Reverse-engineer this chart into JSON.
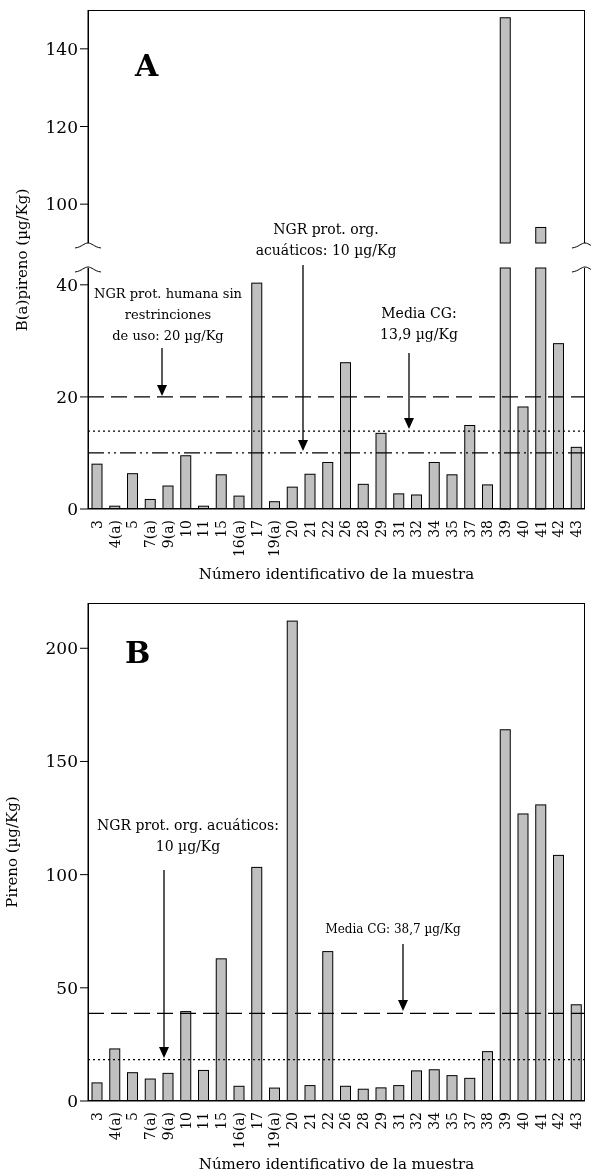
{
  "chart_data": [
    {
      "type": "bar",
      "title": "A",
      "categories": [
        null,
        null,
        null,
        null,
        null,
        null,
        null,
        null,
        null,
        null,
        null,
        null,
        null,
        null,
        null,
        null,
        null,
        null,
        null,
        null,
        null,
        null,
        null,
        null,
        null,
        null,
        null,
        null
      ],
      "values": [
        null,
        null,
        null,
        null,
        null,
        null,
        null,
        null,
        null,
        null,
        null,
        null,
        null,
        null,
        null,
        null,
        null,
        null,
        null,
        null,
        null,
        null,
        null,
        148,
        null,
        94,
        null,
        null
      ],
      "color": "#c0c0c0",
      "ylim": [
        90,
        150
      ],
      "yticks": [
        100,
        120,
        140
      ],
      "tick_labels": "y"
    },
    {
      "type": "bar",
      "ylabel": "B(a)pireno (µg/Kg)",
      "xlabel": "Número identificativo de la muestra",
      "categories": [
        "3",
        "4(a)",
        "5",
        "7(a)",
        "9(a)",
        "10",
        "11",
        "15",
        "16(a)",
        "17",
        "19(a)",
        "20",
        "21",
        "22",
        "26",
        "28",
        "29",
        "31",
        "32",
        "34",
        "35",
        "37",
        "38",
        "39",
        "40",
        "41",
        "42",
        "43"
      ],
      "values": [
        8.0,
        0.5,
        6.3,
        1.7,
        4.1,
        9.5,
        0.5,
        6.1,
        2.3,
        40.3,
        1.3,
        3.9,
        6.2,
        8.3,
        26.1,
        4.4,
        13.5,
        2.7,
        2.5,
        8.3,
        6.1,
        14.9,
        4.3,
        null,
        18.2,
        null,
        29.5,
        11.0
      ],
      "color": "#c0c0c0",
      "ylim": [
        0,
        43
      ],
      "yticks": [
        0,
        20,
        40
      ],
      "ref_lines": [
        {
          "axis": "y",
          "value": 20,
          "line_style": "dashed"
        },
        {
          "axis": "y",
          "value": 13.9,
          "line_style": "dotted"
        },
        {
          "axis": "y",
          "value": 10,
          "line_style": "dashdot"
        }
      ],
      "annotations": [
        "NGR prot. humana sin\nrestrinciones\nde uso: 20 µg/Kg",
        "Media CG:\n13,9 µg/Kg",
        "NGR prot. org.\nacuáticos: 10 µg/Kg"
      ]
    },
    {
      "type": "bar",
      "title": "B",
      "ylabel": "Pireno (µg/Kg)",
      "xlabel": "Número identificativo de la muestra",
      "categories": [
        "3",
        "4(a)",
        "5",
        "7(a)",
        "9(a)",
        "10",
        "11",
        "15",
        "16(a)",
        "17",
        "19(a)",
        "20",
        "21",
        "22",
        "26",
        "28",
        "29",
        "31",
        "32",
        "34",
        "35",
        "37",
        "38",
        "39",
        "40",
        "41",
        "42",
        "43"
      ],
      "values": [
        8.0,
        23.0,
        12.5,
        9.7,
        12.2,
        39.5,
        13.5,
        62.8,
        6.5,
        103.2,
        5.7,
        212,
        6.8,
        66,
        6.5,
        5.2,
        5.8,
        6.8,
        13.3,
        13.8,
        11.2,
        10,
        21.8,
        164,
        126.8,
        130.8,
        108.5,
        42.5
      ],
      "color": "#c0c0c0",
      "ylim": [
        0,
        220
      ],
      "yticks": [
        0,
        50,
        100,
        150,
        200
      ],
      "ref_lines": [
        {
          "axis": "y",
          "value": 38.7,
          "line_style": "dashed"
        },
        {
          "axis": "y",
          "value": 18.3,
          "line_style": "dotted"
        }
      ],
      "annotations": [
        "Media CG: 38,7 µg/Kg",
        "NGR prot. org. acuáticos:\n10 µg/Kg"
      ]
    }
  ]
}
